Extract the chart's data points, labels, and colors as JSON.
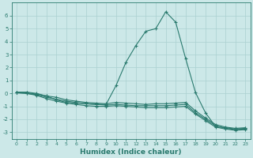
{
  "xlabel": "Humidex (Indice chaleur)",
  "x_values": [
    0,
    1,
    2,
    3,
    4,
    5,
    6,
    7,
    8,
    9,
    10,
    11,
    12,
    13,
    14,
    15,
    16,
    17,
    18,
    19,
    20,
    21,
    22,
    23
  ],
  "line1_y": [
    0.1,
    0.1,
    0.0,
    -0.2,
    -0.5,
    -0.7,
    -0.75,
    -0.8,
    -0.85,
    -0.85,
    0.6,
    2.4,
    3.7,
    4.8,
    5.0,
    6.3,
    5.5,
    2.7,
    0.05,
    -1.5,
    -2.55,
    -2.65,
    -2.75,
    -2.7
  ],
  "line2_y": [
    0.1,
    0.05,
    -0.05,
    -0.2,
    -0.3,
    -0.5,
    -0.6,
    -0.7,
    -0.75,
    -0.8,
    -0.7,
    -0.75,
    -0.8,
    -0.85,
    -0.8,
    -0.8,
    -0.75,
    -0.7,
    -1.35,
    -1.9,
    -2.4,
    -2.6,
    -2.7,
    -2.65
  ],
  "line3_y": [
    0.05,
    0.0,
    -0.1,
    -0.3,
    -0.45,
    -0.6,
    -0.7,
    -0.8,
    -0.85,
    -0.9,
    -0.85,
    -0.9,
    -0.95,
    -0.95,
    -0.95,
    -0.95,
    -0.9,
    -0.85,
    -1.5,
    -2.0,
    -2.5,
    -2.7,
    -2.8,
    -2.75
  ],
  "line4_y": [
    0.05,
    0.0,
    -0.15,
    -0.4,
    -0.6,
    -0.75,
    -0.85,
    -0.95,
    -1.0,
    -1.0,
    -0.95,
    -1.0,
    -1.05,
    -1.1,
    -1.1,
    -1.1,
    -1.05,
    -1.0,
    -1.6,
    -2.1,
    -2.6,
    -2.75,
    -2.85,
    -2.8
  ],
  "line_color": "#2a7a6e",
  "bg_color": "#cce8e8",
  "grid_color": "#aad0d0",
  "ylim": [
    -3.5,
    7.0
  ],
  "xlim": [
    -0.5,
    23.5
  ],
  "yticks": [
    -3,
    -2,
    -1,
    0,
    1,
    2,
    3,
    4,
    5,
    6
  ],
  "xticks": [
    0,
    1,
    2,
    3,
    4,
    5,
    6,
    7,
    8,
    9,
    10,
    11,
    12,
    13,
    14,
    15,
    16,
    17,
    18,
    19,
    20,
    21,
    22,
    23
  ]
}
